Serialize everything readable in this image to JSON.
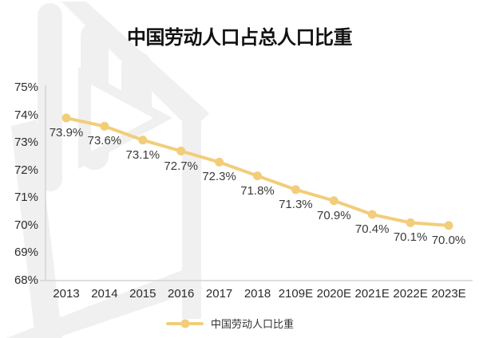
{
  "title": "中国劳动人口占总人口比重",
  "legend": {
    "label": "中国劳动人口比重"
  },
  "colors": {
    "series_line": "#F2CD7A",
    "series_marker": "#F2CD7A",
    "data_label": "#3a3a3a",
    "tick_label": "#2b2b2b",
    "axis_line": "#D4D4D4",
    "title_text": "#111111",
    "watermark": "#F0F0F0",
    "background": "#FFFFFF"
  },
  "chart_data": {
    "type": "line",
    "title": "中国劳动人口占总人口比重",
    "categories": [
      "2013",
      "2014",
      "2015",
      "2016",
      "2017",
      "2018",
      "2109E",
      "2020E",
      "2021E",
      "2022E",
      "2023E"
    ],
    "series": [
      {
        "name": "中国劳动人口比重",
        "values": [
          73.9,
          73.6,
          73.1,
          72.7,
          72.3,
          71.8,
          71.3,
          70.9,
          70.4,
          70.1,
          70.0
        ]
      }
    ],
    "data_labels": [
      "73.9%",
      "73.6%",
      "73.1%",
      "72.7%",
      "72.3%",
      "71.8%",
      "71.3%",
      "70.9%",
      "70.4%",
      "70.1%",
      "70.0%"
    ],
    "xlabel": "",
    "ylabel": "",
    "y_ticks": [
      "75%",
      "74%",
      "73%",
      "72%",
      "71%",
      "70%",
      "69%",
      "68%"
    ],
    "y_tick_values": [
      75,
      74,
      73,
      72,
      71,
      70,
      69,
      68
    ],
    "ylim": [
      68,
      75
    ],
    "grid": false,
    "legend_position": "bottom",
    "data_label_position": "below"
  }
}
